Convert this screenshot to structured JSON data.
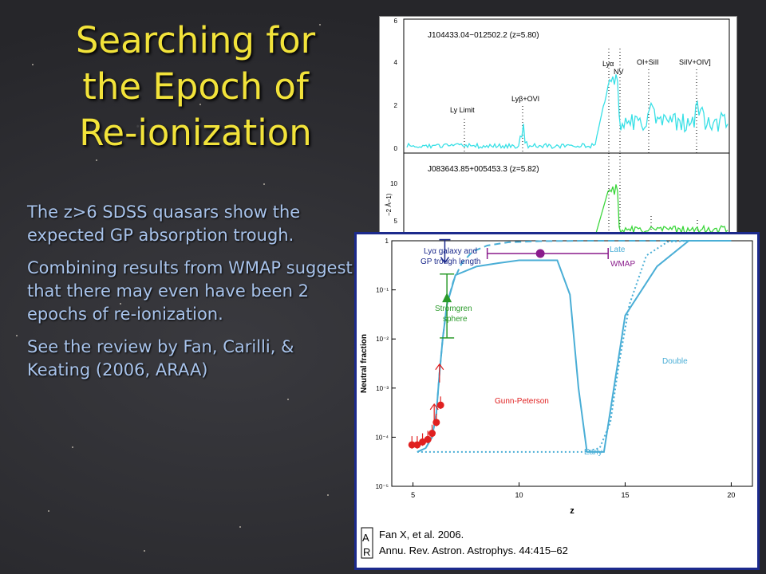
{
  "slide": {
    "title_lines": [
      "Searching for",
      "the Epoch of",
      "Re-ionization"
    ],
    "bullets": [
      "The z>6 SDSS quasars show the expected GP absorption trough.",
      "Combining results from WMAP suggest that there may even have been 2 epochs of re-ionization.",
      "See the review by Fan, Carilli, & Keating (2006, ARAA)"
    ]
  },
  "spectrum_figure": {
    "panel1": {
      "object_label": "J104433.04−012502.2 (z=5.80)",
      "line_labels": [
        "Ly Limit",
        "Lyβ+OVI",
        "Lyα",
        "NV",
        "OI+SiII",
        "SiIV+OIV]"
      ],
      "y_ticks": [
        "0",
        "2",
        "4",
        "6"
      ],
      "trace_color": "#38e0e6"
    },
    "panel2": {
      "object_label": "J083643.85+005453.3 (z=5.82)",
      "y_ticks": [
        "5",
        "10"
      ],
      "y_axis_fragment": "−2 Å−1)",
      "trace_color": "#3ad63a"
    }
  },
  "chart_data": {
    "type": "line",
    "xlabel": "z",
    "ylabel": "Neutral fraction",
    "xscale": "linear",
    "yscale": "log",
    "xlim": [
      4,
      21
    ],
    "ylim": [
      1e-05,
      1
    ],
    "x_ticks": [
      "5",
      "10",
      "15",
      "20"
    ],
    "y_ticks": [
      "10⁻⁵",
      "10⁻⁴",
      "10⁻³",
      "10⁻²",
      "10⁻¹",
      "1"
    ],
    "series": [
      {
        "name": "Late",
        "style": "dashed",
        "color": "#4aaed6",
        "x": [
          5.2,
          5.6,
          5.9,
          6.1,
          6.25,
          6.4,
          6.6,
          6.9,
          7.3,
          7.8,
          8.5,
          9.5,
          11,
          13,
          16,
          20
        ],
        "y": [
          5e-05,
          6e-05,
          0.0001,
          0.0003,
          0.002,
          0.01,
          0.05,
          0.15,
          0.35,
          0.6,
          0.8,
          0.93,
          0.98,
          1,
          1,
          1
        ]
      },
      {
        "name": "Double",
        "style": "solid",
        "color": "#4aaed6",
        "x": [
          5.2,
          5.6,
          5.9,
          6.1,
          6.25,
          6.4,
          6.6,
          7.0,
          8,
          9,
          10,
          11,
          11.8,
          12.4,
          12.8,
          13.2,
          13.5,
          14.0,
          15,
          16.5,
          18,
          20
        ],
        "y": [
          5e-05,
          6e-05,
          0.0001,
          0.0003,
          0.002,
          0.01,
          0.05,
          0.2,
          0.3,
          0.35,
          0.4,
          0.4,
          0.4,
          0.08,
          0.001,
          5e-05,
          5e-05,
          5e-05,
          0.03,
          0.3,
          1,
          1
        ]
      },
      {
        "name": "Early",
        "style": "dotted",
        "color": "#4aaed6",
        "x": [
          5.2,
          6,
          8,
          10,
          12,
          13,
          13.8,
          14.3,
          14.7,
          15.2,
          16,
          17,
          18,
          20
        ],
        "y": [
          5e-05,
          5e-05,
          5e-05,
          5e-05,
          5e-05,
          5e-05,
          6e-05,
          0.0002,
          0.003,
          0.05,
          0.5,
          0.95,
          1,
          1
        ]
      }
    ],
    "constraints": [
      {
        "name": "Gunn-Peterson",
        "color": "#e02020",
        "points": [
          {
            "x": 4.95,
            "y": 7e-05
          },
          {
            "x": 5.2,
            "y": 7e-05
          },
          {
            "x": 5.45,
            "y": 8e-05
          },
          {
            "x": 5.7,
            "y": 9e-05
          },
          {
            "x": 5.9,
            "y": 0.00012
          },
          {
            "x": 6.1,
            "y": 0.0002
          },
          {
            "x": 6.3,
            "y": 0.00045
          }
        ],
        "upper_limit_arrows": [
          {
            "x": 6.0,
            "y": 0.0002
          },
          {
            "x": 6.25,
            "y": 0.0013
          }
        ]
      },
      {
        "name": "Stromgren sphere",
        "color": "#2a9a2a",
        "x": 6.6,
        "y": 0.07,
        "range": [
          0.0105,
          0.21
        ]
      },
      {
        "name": "Lyα galaxy and GP trough length",
        "color": "#1c2a8c",
        "x": 6.5,
        "y": 0.5
      },
      {
        "name": "WMAP",
        "color": "#8a1c8c",
        "x": 11.0,
        "y": 0.55,
        "xrange": [
          8.5,
          14.2
        ]
      }
    ],
    "annotations": [
      "Late",
      "Double",
      "Early",
      "Gunn-Peterson",
      "Stromgren\nsphere",
      "Lyα galaxy and\nGP trough length",
      "WMAP"
    ],
    "citation": [
      "Fan X, et al. 2006.",
      "Annu. Rev. Astron. Astrophys. 44:415–62"
    ],
    "logo_text": "AR"
  }
}
